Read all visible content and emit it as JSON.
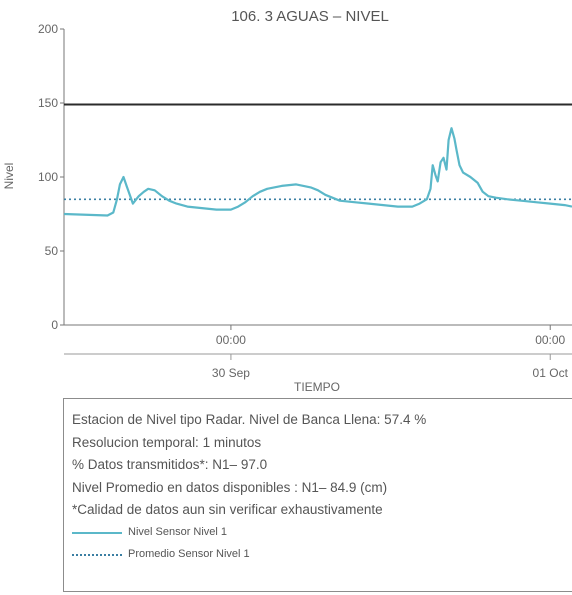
{
  "chart_data": {
    "type": "line",
    "title": "106. 3 AGUAS – NIVEL",
    "ylabel": "Nivel",
    "xlabel": "TIEMPO",
    "ylim": [
      0,
      200
    ],
    "yticks": [
      0,
      50,
      100,
      150,
      200
    ],
    "xlim_hours": [
      0,
      70
    ],
    "xticks": [
      {
        "hour": 23,
        "time": "00:00",
        "date": "30 Sep"
      },
      {
        "hour": 67,
        "time": "00:00",
        "date": "01 Oct"
      }
    ],
    "reference_line": {
      "value": 149,
      "color": "#2b2b2b"
    },
    "series": [
      {
        "name": "Nivel Sensor Nivel 1",
        "color": "#5bb8c9",
        "style": "solid",
        "x": [
          0,
          6,
          6.8,
          7.3,
          7.7,
          8.2,
          8.7,
          9.5,
          10.3,
          11,
          11.6,
          12.5,
          13.5,
          14.5,
          15.5,
          17,
          19,
          21,
          23,
          24,
          25,
          26,
          27,
          28,
          30,
          32,
          33,
          34,
          35,
          36,
          38,
          40,
          42,
          44,
          46,
          48,
          49,
          50,
          50.5,
          50.8,
          51.2,
          51.5,
          51.9,
          52.3,
          52.7,
          53,
          53.4,
          53.8,
          54.1,
          54.5,
          55,
          56,
          57,
          57.7,
          58.5,
          59.5,
          61,
          63,
          65,
          67,
          69,
          70
        ],
        "y": [
          75,
          74,
          76,
          85,
          95,
          100,
          93,
          82,
          87,
          90,
          92,
          91,
          87,
          84,
          82,
          80,
          79,
          78,
          78,
          80,
          83,
          87,
          90,
          92,
          94,
          95,
          94,
          93,
          91,
          88,
          84,
          83,
          82,
          81,
          80,
          80,
          82,
          85,
          92,
          108,
          101,
          97,
          110,
          113,
          105,
          125,
          133,
          126,
          118,
          108,
          103,
          100,
          96,
          90,
          87,
          86,
          85,
          84,
          83,
          82,
          81,
          80
        ]
      },
      {
        "name": "Promedio Sensor Nivel 1",
        "color": "#3b7fa3",
        "style": "dotted",
        "constant": 84.9
      }
    ],
    "grid": false
  },
  "info": {
    "lines": [
      "Estacion de Nivel tipo Radar. Nivel de Banca Llena: 57.4 %",
      "Resolucion temporal: 1 minutos",
      "% Datos transmitidos*: N1– 97.0",
      "Nivel Promedio en datos disponibles : N1– 84.9 (cm)",
      "*Calidad de datos aun sin verificar exhaustivamente"
    ],
    "legend": [
      {
        "label": "Nivel Sensor Nivel 1"
      },
      {
        "label": "Promedio Sensor Nivel 1"
      }
    ]
  }
}
